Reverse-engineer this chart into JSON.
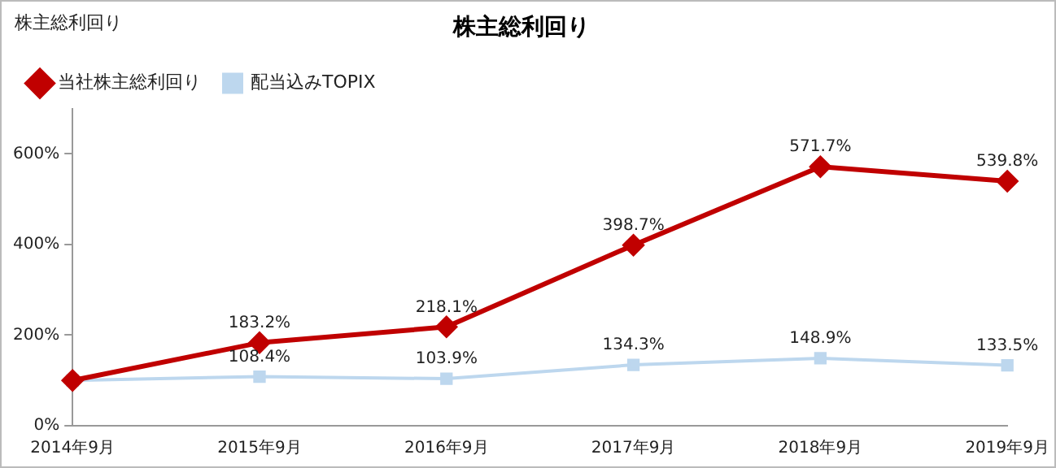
{
  "chart_data": {
    "type": "line",
    "title": "株主総利回り",
    "ylabel": "株主総利回り",
    "categories": [
      "2014年9月",
      "2015年9月",
      "2016年9月",
      "2017年9月",
      "2018年9月",
      "2019年9月"
    ],
    "series": [
      {
        "name": "当社株主総利回り",
        "color": "#c00000",
        "marker": "diamond",
        "values": [
          100,
          183.2,
          218.1,
          398.7,
          571.7,
          539.8
        ],
        "value_labels": [
          null,
          "183.2%",
          "218.1%",
          "398.7%",
          "571.7%",
          "539.8%"
        ]
      },
      {
        "name": "配当込みTOPIX",
        "color": "#bdd7ee",
        "marker": "square",
        "values": [
          100,
          108.4,
          103.9,
          134.3,
          148.9,
          133.5
        ],
        "value_labels": [
          null,
          "108.4%",
          "103.9%",
          "134.3%",
          "148.9%",
          "133.5%"
        ]
      }
    ],
    "ylim": [
      0,
      700
    ],
    "yticks": [
      {
        "value": 0,
        "label": "0%"
      },
      {
        "value": 200,
        "label": "200%"
      },
      {
        "value": 400,
        "label": "400%"
      },
      {
        "value": 600,
        "label": "600%"
      }
    ],
    "grid": false,
    "legend": "top left"
  }
}
